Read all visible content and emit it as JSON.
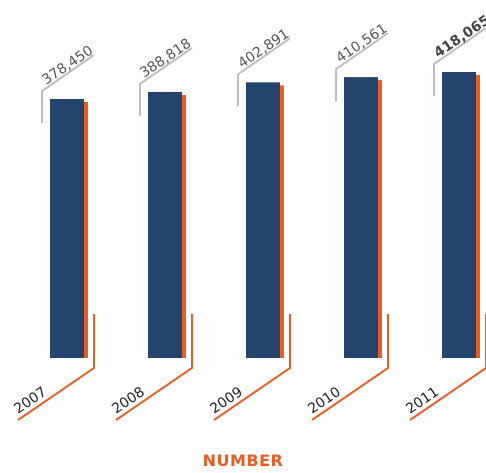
{
  "colors": {
    "bar": "#24446e",
    "bar_shadow": "#e85d22",
    "leader": "#bdbdbd",
    "baseline_accent": "#e85d22",
    "title": "#e85d22"
  },
  "chart_data": {
    "type": "bar",
    "categories": [
      "2007",
      "2008",
      "2009",
      "2010",
      "2011"
    ],
    "values": [
      378450,
      388818,
      402891,
      410561,
      418065
    ],
    "value_labels": [
      "378,450",
      "388,818",
      "402,891",
      "410,561",
      "418,065"
    ],
    "emphasized_index": 4,
    "xlabel": "NUMBER",
    "ylabel": "",
    "title": "",
    "grid": false,
    "legend": "none"
  }
}
